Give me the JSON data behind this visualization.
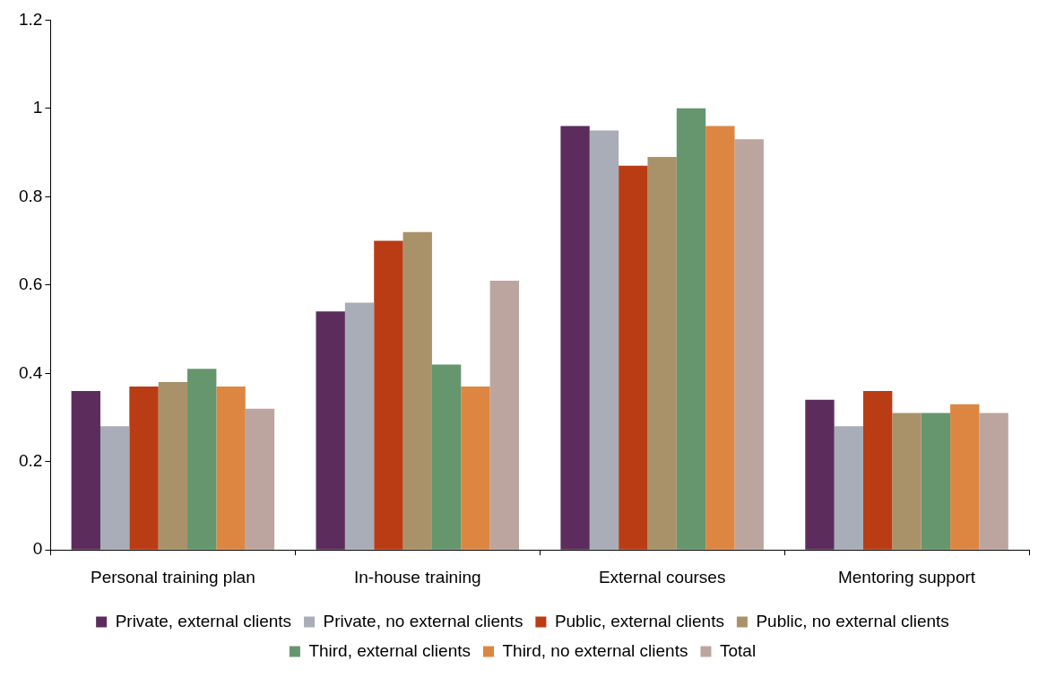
{
  "chart_data": {
    "type": "bar",
    "categories": [
      "Personal training plan",
      "In-house training",
      "External courses",
      "Mentoring support"
    ],
    "series": [
      {
        "name": "Private, external clients",
        "color": "#5c2d5c",
        "values": [
          0.36,
          0.54,
          0.96,
          0.34
        ]
      },
      {
        "name": "Private, no external clients",
        "color": "#a8adb8",
        "values": [
          0.28,
          0.56,
          0.95,
          0.28
        ]
      },
      {
        "name": "Public, external clients",
        "color": "#b93c14",
        "values": [
          0.37,
          0.7,
          0.87,
          0.36
        ]
      },
      {
        "name": "Public, no external clients",
        "color": "#a9926a",
        "values": [
          0.38,
          0.72,
          0.89,
          0.31
        ]
      },
      {
        "name": "Third, external clients",
        "color": "#66966e",
        "values": [
          0.41,
          0.42,
          1.0,
          0.31
        ]
      },
      {
        "name": "Third, no external clients",
        "color": "#dd8642",
        "values": [
          0.37,
          0.37,
          0.96,
          0.33
        ]
      },
      {
        "name": "Total",
        "color": "#bda59f",
        "values": [
          0.32,
          0.61,
          0.93,
          0.31
        ]
      }
    ],
    "ylim": [
      0,
      1.2
    ],
    "yticks": [
      0,
      0.2,
      0.4,
      0.6,
      0.8,
      1,
      1.2
    ],
    "grid": false,
    "legend": "bottom"
  }
}
